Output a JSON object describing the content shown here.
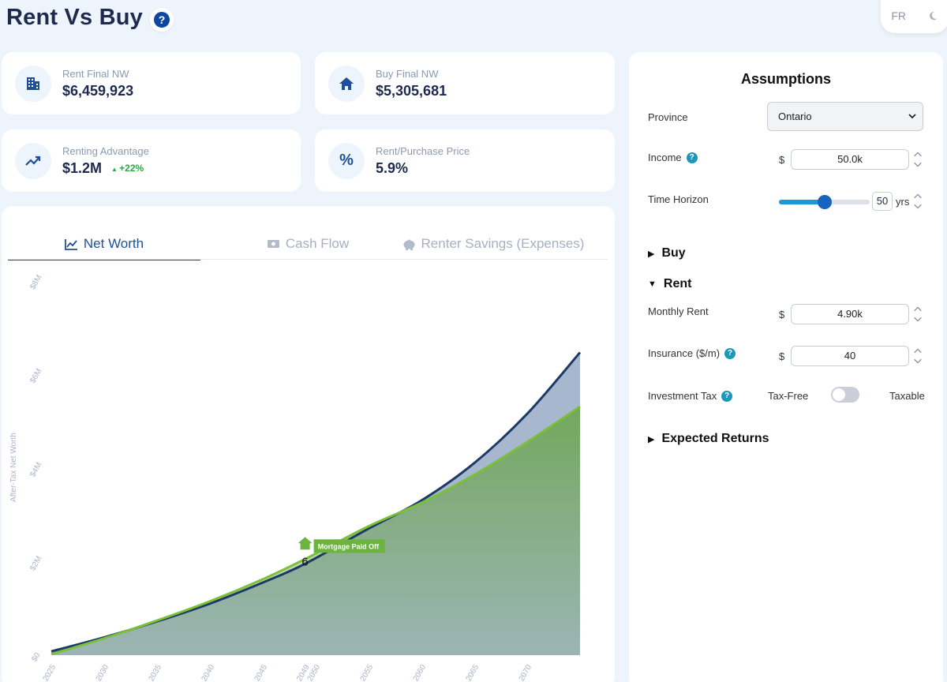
{
  "header": {
    "title": "Rent Vs Buy",
    "help_icon": "question-circle-icon",
    "lang": "FR",
    "theme_icon": "moon-icon"
  },
  "stats": [
    {
      "label": "Rent Final NW",
      "value": "$6,459,923",
      "icon": "building-icon"
    },
    {
      "label": "Buy Final NW",
      "value": "$5,305,681",
      "icon": "home-icon"
    },
    {
      "label": "Renting Advantage",
      "value": "$1.2M",
      "badge": "+22%",
      "icon": "trending-up-icon"
    },
    {
      "label": "Rent/Purchase Price",
      "value": "5.9%",
      "icon": "percent-icon"
    }
  ],
  "tabs": [
    {
      "label": "Net Worth",
      "icon": "line-chart-icon",
      "active": true
    },
    {
      "label": "Cash Flow",
      "icon": "money-icon",
      "active": false
    },
    {
      "label": "Renter Savings (Expenses)",
      "icon": "piggy-bank-icon",
      "active": false
    }
  ],
  "chart_data": {
    "type": "area",
    "ylabel": "After-Tax Net Worth",
    "yticks": [
      "$0",
      "$2M",
      "$4M",
      "$6M",
      "$8M"
    ],
    "ylim": [
      0,
      8000000
    ],
    "xticks": [
      "2025",
      "2030",
      "2035",
      "2040",
      "2045",
      "2049",
      "2050",
      "2055",
      "2060",
      "2065",
      "2070"
    ],
    "xlim": [
      2025,
      2075
    ],
    "series": [
      {
        "color": "#1b3a66",
        "x": [
          2025,
          2030,
          2035,
          2040,
          2045,
          2049,
          2055,
          2060,
          2065,
          2070,
          2075
        ],
        "values": [
          80000,
          380000,
          720000,
          1100000,
          1550000,
          1950000,
          2700000,
          3300000,
          4100000,
          5150000,
          6459923
        ]
      },
      {
        "color": "#7cbf3a",
        "x": [
          2025,
          2030,
          2035,
          2040,
          2045,
          2049,
          2055,
          2060,
          2065,
          2070,
          2075
        ],
        "values": [
          20000,
          360000,
          740000,
          1150000,
          1620000,
          2050000,
          2750000,
          3250000,
          3850000,
          4550000,
          5305681
        ]
      }
    ],
    "annotation": {
      "label": "Mortgage Paid Off",
      "x": 2049,
      "marker": "6"
    },
    "grid": false
  },
  "assumptions": {
    "title": "Assumptions",
    "province_label": "Province",
    "province_value": "Ontario",
    "income_label": "Income",
    "currency": "$",
    "income_value": "50.0k",
    "time_horizon_label": "Time Horizon",
    "time_horizon_value": "50",
    "time_horizon_fraction": 0.5,
    "yrs": "yrs",
    "buy_section": "Buy",
    "rent_section": "Rent",
    "monthly_rent_label": "Monthly Rent",
    "monthly_rent_value": "4.90k",
    "insurance_label": "Insurance ($/m)",
    "insurance_value": "40",
    "investment_tax_label": "Investment Tax",
    "tax_free": "Tax-Free",
    "taxable": "Taxable",
    "expected_returns_section": "Expected Returns"
  }
}
